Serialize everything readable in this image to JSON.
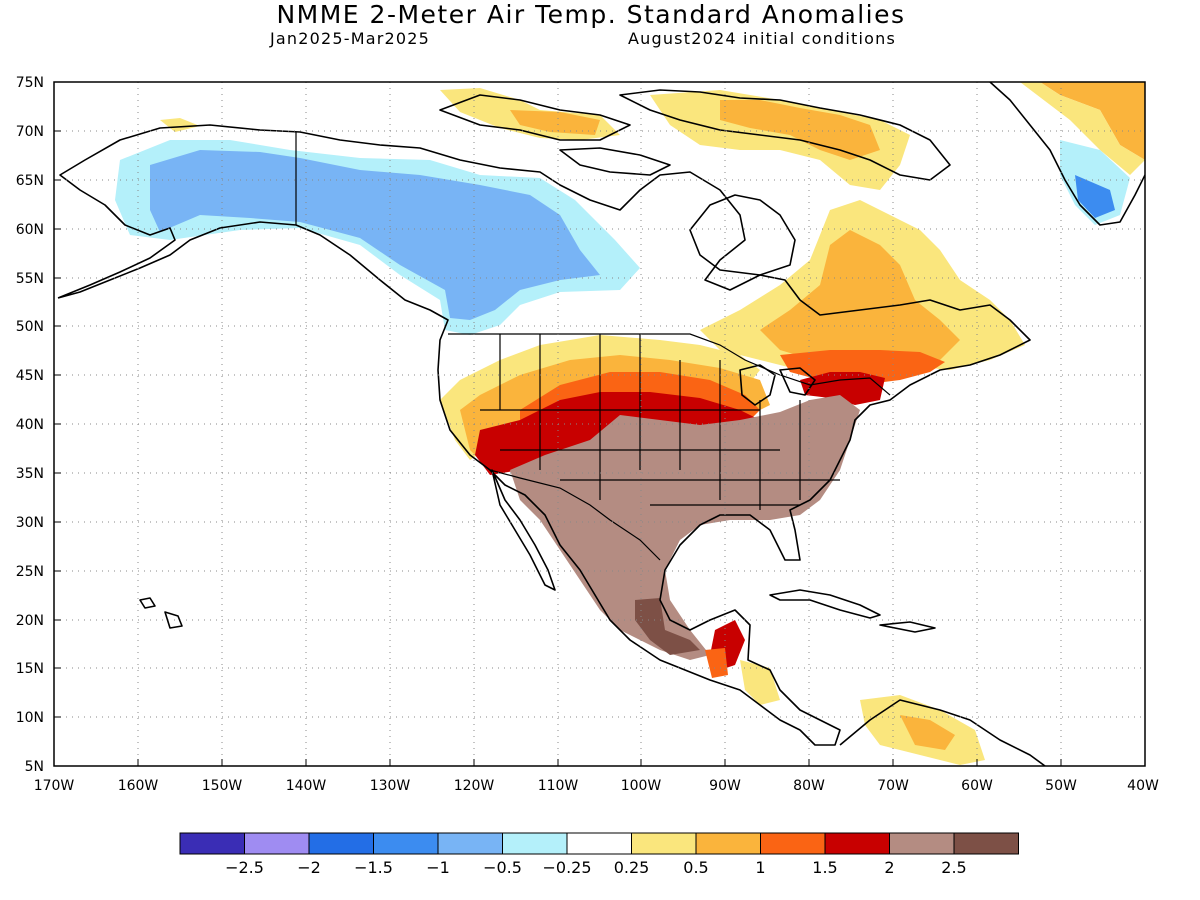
{
  "header": {
    "title": "NMME 2-Meter Air Temp. Standard Anomalies",
    "period": "Jan2025-Mar2025",
    "initial_conditions": "August2024 initial conditions"
  },
  "map": {
    "lat_ticks": [
      "75N",
      "70N",
      "65N",
      "60N",
      "55N",
      "50N",
      "45N",
      "40N",
      "35N",
      "30N",
      "25N",
      "20N",
      "15N",
      "10N",
      "5N"
    ],
    "lon_ticks": [
      "170W",
      "160W",
      "150W",
      "140W",
      "130W",
      "120W",
      "110W",
      "100W",
      "90W",
      "80W",
      "70W",
      "60W",
      "50W",
      "40W"
    ],
    "grid": "dotted"
  },
  "legend": {
    "colors": [
      "#3a2db5",
      "#9f8cf2",
      "#236ee6",
      "#3c8cf0",
      "#78b4f5",
      "#b4f0fa",
      "#ffffff",
      "#fae67d",
      "#fab43c",
      "#fa6414",
      "#c80000",
      "#b48c82",
      "#7d5046"
    ],
    "labels": [
      "-2.5",
      "-2",
      "-1.5",
      "-1",
      "-0.5",
      "-0.25",
      "0.25",
      "0.5",
      "1",
      "1.5",
      "2",
      "2.5"
    ]
  }
}
